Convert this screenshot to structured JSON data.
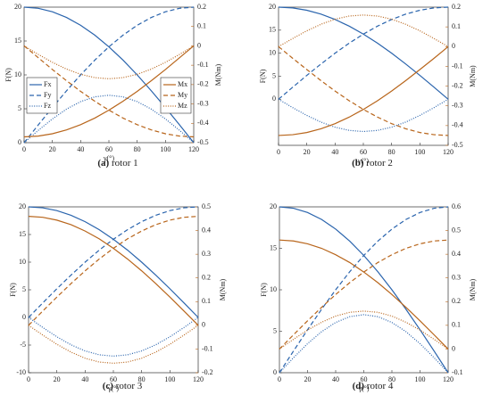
{
  "chart_data": [
    {
      "type": "line",
      "label": "(a)",
      "title": "rotor 1",
      "x_label": "γ(°)",
      "y_label": "F(N)",
      "y2_label": "M(Nm)",
      "legend": true,
      "x": [
        0,
        10,
        20,
        30,
        40,
        50,
        60,
        70,
        80,
        90,
        100,
        110,
        120
      ],
      "xlim": [
        0,
        120
      ],
      "xticks": [
        0,
        20,
        40,
        60,
        80,
        100,
        120
      ],
      "ylim": [
        0,
        20
      ],
      "yticks": [
        0,
        5,
        10,
        15,
        20
      ],
      "y2lim": [
        -0.5,
        0.2
      ],
      "y2ticks": [
        -0.5,
        -0.4,
        -0.3,
        -0.2,
        -0.1,
        0,
        0.1,
        0.2
      ],
      "series": [
        {
          "name": "Fx",
          "color": "#2a64ad",
          "style": "solid",
          "values": [
            20,
            19.83,
            19.32,
            18.48,
            17.32,
            15.87,
            14.14,
            12.18,
            10,
            7.65,
            5.18,
            2.61,
            0
          ]
        },
        {
          "name": "Fy",
          "color": "#2a64ad",
          "style": "dashed",
          "values": [
            0,
            2.61,
            5.18,
            7.65,
            10,
            12.18,
            14.14,
            15.87,
            17.32,
            18.48,
            19.32,
            19.83,
            20
          ]
        },
        {
          "name": "Fz",
          "color": "#2a64ad",
          "style": "dotted",
          "values": [
            0,
            1.81,
            3.5,
            4.95,
            6.06,
            6.76,
            7,
            6.76,
            6.06,
            4.95,
            3.5,
            1.81,
            0
          ]
        },
        {
          "name": "Mx",
          "color": "#b8651b",
          "style": "solid",
          "axis": "y2",
          "values": [
            -0.47,
            -0.466,
            -0.454,
            -0.434,
            -0.407,
            -0.373,
            -0.332,
            -0.286,
            -0.235,
            -0.18,
            -0.122,
            -0.061,
            0
          ]
        },
        {
          "name": "My",
          "color": "#b8651b",
          "style": "dashed",
          "axis": "y2",
          "values": [
            0,
            -0.061,
            -0.122,
            -0.18,
            -0.235,
            -0.286,
            -0.332,
            -0.373,
            -0.407,
            -0.434,
            -0.454,
            -0.466,
            -0.47
          ]
        },
        {
          "name": "Mz",
          "color": "#b8651b",
          "style": "dotted",
          "axis": "y2",
          "values": [
            0,
            -0.044,
            -0.085,
            -0.12,
            -0.147,
            -0.164,
            -0.17,
            -0.164,
            -0.147,
            -0.12,
            -0.085,
            -0.044,
            0
          ]
        }
      ]
    },
    {
      "type": "line",
      "label": "(b)",
      "title": "rotor 2",
      "x_label": "γ(°)",
      "y_label": "F(N)",
      "y2_label": "M(Nm)",
      "x": [
        0,
        10,
        20,
        30,
        40,
        50,
        60,
        70,
        80,
        90,
        100,
        110,
        120
      ],
      "xlim": [
        0,
        120
      ],
      "xticks": [
        0,
        20,
        40,
        60,
        80,
        100,
        120
      ],
      "ylim": [
        -10,
        20
      ],
      "yticks": [
        0,
        5,
        10,
        15,
        20
      ],
      "y2lim": [
        -0.5,
        0.2
      ],
      "y2ticks": [
        -0.5,
        -0.4,
        -0.3,
        -0.2,
        -0.1,
        0,
        0.1,
        0.2
      ],
      "series": [
        {
          "name": "Fx",
          "color": "#2a64ad",
          "style": "solid",
          "values": [
            20,
            19.83,
            19.32,
            18.48,
            17.32,
            15.87,
            14.14,
            12.18,
            10,
            7.65,
            5.18,
            2.61,
            0
          ]
        },
        {
          "name": "Fy",
          "color": "#2a64ad",
          "style": "dashed",
          "values": [
            0,
            2.61,
            5.18,
            7.65,
            10,
            12.18,
            14.14,
            15.87,
            17.32,
            18.48,
            19.32,
            19.83,
            20
          ]
        },
        {
          "name": "Fz",
          "color": "#2a64ad",
          "style": "dotted",
          "values": [
            0,
            -1.81,
            -3.5,
            -4.95,
            -6.06,
            -6.76,
            -7,
            -6.76,
            -6.06,
            -4.95,
            -3.5,
            -1.81,
            0
          ]
        },
        {
          "name": "Mx",
          "color": "#b8651b",
          "style": "solid",
          "axis": "y2",
          "values": [
            -0.45,
            -0.446,
            -0.435,
            -0.416,
            -0.39,
            -0.357,
            -0.318,
            -0.274,
            -0.225,
            -0.172,
            -0.116,
            -0.059,
            0
          ]
        },
        {
          "name": "My",
          "color": "#b8651b",
          "style": "dashed",
          "axis": "y2",
          "values": [
            0,
            -0.059,
            -0.116,
            -0.172,
            -0.225,
            -0.274,
            -0.318,
            -0.357,
            -0.39,
            -0.416,
            -0.435,
            -0.446,
            -0.45
          ]
        },
        {
          "name": "Mz",
          "color": "#b8651b",
          "style": "dotted",
          "axis": "y2",
          "values": [
            0,
            0.041,
            0.08,
            0.113,
            0.139,
            0.155,
            0.16,
            0.155,
            0.139,
            0.113,
            0.08,
            0.041,
            0
          ]
        }
      ]
    },
    {
      "type": "line",
      "label": "(c)",
      "title": "rotor 3",
      "x_label": "γ(°)",
      "y_label": "F(N)",
      "y2_label": "M(Nm)",
      "x": [
        0,
        10,
        20,
        30,
        40,
        50,
        60,
        70,
        80,
        90,
        100,
        110,
        120
      ],
      "xlim": [
        0,
        120
      ],
      "xticks": [
        0,
        20,
        40,
        60,
        80,
        100,
        120
      ],
      "ylim": [
        -10,
        20
      ],
      "yticks": [
        -10,
        -5,
        0,
        5,
        10,
        15,
        20
      ],
      "y2lim": [
        -0.2,
        0.5
      ],
      "y2ticks": [
        -0.2,
        -0.1,
        0,
        0.1,
        0.2,
        0.3,
        0.4,
        0.5
      ],
      "series": [
        {
          "name": "Fx",
          "color": "#2a64ad",
          "style": "solid",
          "values": [
            20,
            19.83,
            19.32,
            18.48,
            17.32,
            15.87,
            14.14,
            12.18,
            10,
            7.65,
            5.18,
            2.61,
            0
          ]
        },
        {
          "name": "Fy",
          "color": "#2a64ad",
          "style": "dashed",
          "values": [
            0,
            2.61,
            5.18,
            7.65,
            10,
            12.18,
            14.14,
            15.87,
            17.32,
            18.48,
            19.32,
            19.83,
            20
          ]
        },
        {
          "name": "Fz",
          "color": "#2a64ad",
          "style": "dotted",
          "values": [
            0,
            -1.81,
            -3.5,
            -4.95,
            -6.06,
            -6.76,
            -7,
            -6.76,
            -6.06,
            -4.95,
            -3.5,
            -1.81,
            0
          ]
        },
        {
          "name": "Mx",
          "color": "#b8651b",
          "style": "solid",
          "axis": "y2",
          "values": [
            0.46,
            0.456,
            0.444,
            0.425,
            0.398,
            0.365,
            0.325,
            0.28,
            0.23,
            0.176,
            0.119,
            0.06,
            0
          ]
        },
        {
          "name": "My",
          "color": "#b8651b",
          "style": "dashed",
          "axis": "y2",
          "values": [
            0,
            0.06,
            0.119,
            0.176,
            0.23,
            0.28,
            0.325,
            0.365,
            0.398,
            0.425,
            0.444,
            0.456,
            0.46
          ]
        },
        {
          "name": "Mz",
          "color": "#b8651b",
          "style": "dotted",
          "axis": "y2",
          "values": [
            0,
            -0.041,
            -0.08,
            -0.113,
            -0.139,
            -0.155,
            -0.16,
            -0.155,
            -0.139,
            -0.113,
            -0.08,
            -0.041,
            0
          ]
        }
      ]
    },
    {
      "type": "line",
      "label": "(d)",
      "title": "rotor 4",
      "x_label": "γ(°)",
      "y_label": "F(N)",
      "y2_label": "M(Nm)",
      "x": [
        0,
        10,
        20,
        30,
        40,
        50,
        60,
        70,
        80,
        90,
        100,
        110,
        120
      ],
      "xlim": [
        0,
        120
      ],
      "xticks": [
        0,
        20,
        40,
        60,
        80,
        100,
        120
      ],
      "ylim": [
        0,
        20
      ],
      "yticks": [
        0,
        5,
        10,
        15,
        20
      ],
      "y2lim": [
        -0.1,
        0.6
      ],
      "y2ticks": [
        -0.1,
        0,
        0.1,
        0.2,
        0.3,
        0.4,
        0.5,
        0.6
      ],
      "series": [
        {
          "name": "Fx",
          "color": "#2a64ad",
          "style": "solid",
          "values": [
            20,
            19.83,
            19.32,
            18.48,
            17.32,
            15.87,
            14.14,
            12.18,
            10,
            7.65,
            5.18,
            2.61,
            0
          ]
        },
        {
          "name": "Fy",
          "color": "#2a64ad",
          "style": "dashed",
          "values": [
            0,
            2.61,
            5.18,
            7.65,
            10,
            12.18,
            14.14,
            15.87,
            17.32,
            18.48,
            19.32,
            19.83,
            20
          ]
        },
        {
          "name": "Fz",
          "color": "#2a64ad",
          "style": "dotted",
          "values": [
            0,
            1.81,
            3.5,
            4.95,
            6.06,
            6.76,
            7,
            6.76,
            6.06,
            4.95,
            3.5,
            1.81,
            0
          ]
        },
        {
          "name": "Mx",
          "color": "#b8651b",
          "style": "solid",
          "axis": "y2",
          "values": [
            0.46,
            0.456,
            0.444,
            0.425,
            0.398,
            0.365,
            0.325,
            0.28,
            0.23,
            0.176,
            0.119,
            0.06,
            0
          ]
        },
        {
          "name": "My",
          "color": "#b8651b",
          "style": "dashed",
          "axis": "y2",
          "values": [
            0,
            0.06,
            0.119,
            0.176,
            0.23,
            0.28,
            0.325,
            0.365,
            0.398,
            0.425,
            0.444,
            0.456,
            0.46
          ]
        },
        {
          "name": "Mz",
          "color": "#b8651b",
          "style": "dotted",
          "axis": "y2",
          "values": [
            0,
            0.041,
            0.08,
            0.113,
            0.139,
            0.155,
            0.16,
            0.155,
            0.139,
            0.113,
            0.08,
            0.041,
            0
          ]
        }
      ]
    }
  ]
}
